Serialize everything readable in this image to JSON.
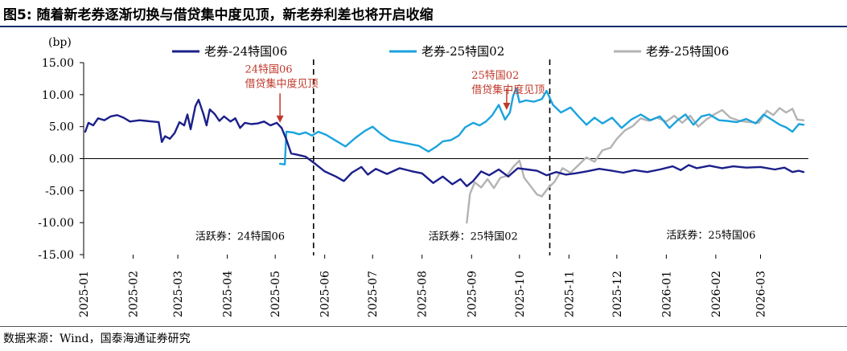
{
  "figure": {
    "title": "图5: 随着新老券逐渐切换与借贷集中度见顶，新老券利差也将开启收缩",
    "source": "数据来源：Wind，国泰海通证券研究"
  },
  "chart_data": {
    "type": "line",
    "unit_label": "(bp)",
    "x_range": [
      "2025-01-01",
      "2026-03-31"
    ],
    "ylim": [
      -15,
      15
    ],
    "yticks": [
      "15.00",
      "10.00",
      "5.00",
      "0.00",
      "-5.00",
      "-10.00",
      "-15.00"
    ],
    "xticks": [
      {
        "label": "2025-01",
        "date": "2025-01-01"
      },
      {
        "label": "2025-02",
        "date": "2025-02-01"
      },
      {
        "label": "2025-03",
        "date": "2025-03-01"
      },
      {
        "label": "2025-04",
        "date": "2025-04-01"
      },
      {
        "label": "2025-05",
        "date": "2025-05-01"
      },
      {
        "label": "2025-06",
        "date": "2025-06-01"
      },
      {
        "label": "2025-07",
        "date": "2025-07-01"
      },
      {
        "label": "2025-08",
        "date": "2025-08-01"
      },
      {
        "label": "2025-09",
        "date": "2025-09-01"
      },
      {
        "label": "2025-10",
        "date": "2025-10-01"
      },
      {
        "label": "2025-11",
        "date": "2025-11-01"
      },
      {
        "label": "2025-12",
        "date": "2025-12-01"
      },
      {
        "label": "2026-01",
        "date": "2026-01-01"
      },
      {
        "label": "2026-02",
        "date": "2026-02-01"
      },
      {
        "label": "2026-03",
        "date": "2026-03-01"
      }
    ],
    "grid": false,
    "legend_position": "top",
    "series": [
      {
        "name": "老券-24特国06",
        "color": "#1b1f8a",
        "points": [
          [
            "2025-01-02",
            4.2
          ],
          [
            "2025-01-04",
            5.6
          ],
          [
            "2025-01-07",
            5.2
          ],
          [
            "2025-01-10",
            6.3
          ],
          [
            "2025-01-14",
            6.0
          ],
          [
            "2025-01-18",
            6.6
          ],
          [
            "2025-01-22",
            6.8
          ],
          [
            "2025-01-26",
            6.4
          ],
          [
            "2025-01-30",
            5.8
          ],
          [
            "2025-02-05",
            6.0
          ],
          [
            "2025-02-09",
            5.9
          ],
          [
            "2025-02-13",
            5.8
          ],
          [
            "2025-02-17",
            5.7
          ],
          [
            "2025-02-19",
            2.6
          ],
          [
            "2025-02-21",
            3.5
          ],
          [
            "2025-02-24",
            3.1
          ],
          [
            "2025-02-27",
            4.0
          ],
          [
            "2025-03-02",
            5.7
          ],
          [
            "2025-03-05",
            5.2
          ],
          [
            "2025-03-07",
            6.9
          ],
          [
            "2025-03-09",
            4.6
          ],
          [
            "2025-03-12",
            8.2
          ],
          [
            "2025-03-14",
            9.2
          ],
          [
            "2025-03-17",
            7.0
          ],
          [
            "2025-03-19",
            5.2
          ],
          [
            "2025-03-21",
            7.7
          ],
          [
            "2025-03-24",
            7.0
          ],
          [
            "2025-03-27",
            5.9
          ],
          [
            "2025-03-30",
            6.6
          ],
          [
            "2025-04-03",
            5.8
          ],
          [
            "2025-04-06",
            6.3
          ],
          [
            "2025-04-09",
            4.8
          ],
          [
            "2025-04-12",
            5.6
          ],
          [
            "2025-04-16",
            5.4
          ],
          [
            "2025-04-20",
            5.5
          ],
          [
            "2025-04-24",
            5.8
          ],
          [
            "2025-04-28",
            5.2
          ],
          [
            "2025-05-02",
            5.6
          ],
          [
            "2025-05-05",
            4.8
          ],
          [
            "2025-05-08",
            3.0
          ],
          [
            "2025-05-11",
            0.8
          ],
          [
            "2025-05-15",
            0.6
          ],
          [
            "2025-05-20",
            0.3
          ],
          [
            "2025-05-26",
            -0.8
          ],
          [
            "2025-06-01",
            -2.0
          ],
          [
            "2025-06-08",
            -2.8
          ],
          [
            "2025-06-13",
            -3.5
          ],
          [
            "2025-06-18",
            -2.2
          ],
          [
            "2025-06-24",
            -1.3
          ],
          [
            "2025-06-28",
            -2.5
          ],
          [
            "2025-07-03",
            -1.6
          ],
          [
            "2025-07-10",
            -2.4
          ],
          [
            "2025-07-18",
            -1.5
          ],
          [
            "2025-07-26",
            -2.0
          ],
          [
            "2025-08-01",
            -2.3
          ],
          [
            "2025-08-08",
            -3.8
          ],
          [
            "2025-08-14",
            -2.8
          ],
          [
            "2025-08-20",
            -4.0
          ],
          [
            "2025-08-25",
            -3.2
          ],
          [
            "2025-08-29",
            -4.3
          ],
          [
            "2025-09-02",
            -3.5
          ],
          [
            "2025-09-07",
            -2.0
          ],
          [
            "2025-09-12",
            -2.6
          ],
          [
            "2025-09-18",
            -1.7
          ],
          [
            "2025-09-24",
            -2.8
          ],
          [
            "2025-09-30",
            -1.5
          ],
          [
            "2025-10-06",
            -1.7
          ],
          [
            "2025-10-12",
            -1.9
          ],
          [
            "2025-10-18",
            -2.6
          ],
          [
            "2025-10-24",
            -2.1
          ],
          [
            "2025-10-30",
            -2.5
          ],
          [
            "2025-11-05",
            -2.3
          ],
          [
            "2025-11-12",
            -2.0
          ],
          [
            "2025-11-20",
            -1.6
          ],
          [
            "2025-11-28",
            -1.9
          ],
          [
            "2025-12-05",
            -2.2
          ],
          [
            "2025-12-12",
            -1.8
          ],
          [
            "2025-12-20",
            -2.1
          ],
          [
            "2025-12-28",
            -1.7
          ],
          [
            "2026-01-05",
            -1.2
          ],
          [
            "2026-01-10",
            -1.8
          ],
          [
            "2026-01-15",
            -1.0
          ],
          [
            "2026-01-20",
            -1.5
          ],
          [
            "2026-01-28",
            -1.1
          ],
          [
            "2026-02-05",
            -1.5
          ],
          [
            "2026-02-12",
            -1.2
          ],
          [
            "2026-02-20",
            -1.4
          ],
          [
            "2026-03-01",
            -1.3
          ],
          [
            "2026-03-10",
            -1.7
          ],
          [
            "2026-03-16",
            -1.4
          ],
          [
            "2026-03-21",
            -2.1
          ],
          [
            "2026-03-25",
            -1.9
          ],
          [
            "2026-03-28",
            -2.1
          ]
        ]
      },
      {
        "name": "老券-25特国02",
        "color": "#1aa3dd",
        "points": [
          [
            "2025-05-04",
            -0.8
          ],
          [
            "2025-05-07",
            -0.9
          ],
          [
            "2025-05-08",
            4.2
          ],
          [
            "2025-05-12",
            4.1
          ],
          [
            "2025-05-16",
            3.8
          ],
          [
            "2025-05-20",
            4.1
          ],
          [
            "2025-05-24",
            3.6
          ],
          [
            "2025-05-28",
            4.2
          ],
          [
            "2025-06-02",
            3.7
          ],
          [
            "2025-06-08",
            2.8
          ],
          [
            "2025-06-14",
            1.9
          ],
          [
            "2025-06-20",
            3.2
          ],
          [
            "2025-06-26",
            4.3
          ],
          [
            "2025-07-01",
            5.0
          ],
          [
            "2025-07-06",
            3.9
          ],
          [
            "2025-07-12",
            2.9
          ],
          [
            "2025-07-18",
            2.6
          ],
          [
            "2025-07-24",
            2.3
          ],
          [
            "2025-07-30",
            2.0
          ],
          [
            "2025-08-05",
            1.1
          ],
          [
            "2025-08-10",
            1.9
          ],
          [
            "2025-08-14",
            2.7
          ],
          [
            "2025-08-19",
            2.9
          ],
          [
            "2025-08-24",
            3.6
          ],
          [
            "2025-08-28",
            4.9
          ],
          [
            "2025-09-02",
            5.6
          ],
          [
            "2025-09-06",
            5.2
          ],
          [
            "2025-09-10",
            5.8
          ],
          [
            "2025-09-14",
            6.8
          ],
          [
            "2025-09-18",
            8.4
          ],
          [
            "2025-09-22",
            6.1
          ],
          [
            "2025-09-25",
            7.2
          ],
          [
            "2025-09-27",
            9.8
          ],
          [
            "2025-09-29",
            11.0
          ],
          [
            "2025-10-01",
            8.8
          ],
          [
            "2025-10-05",
            9.1
          ],
          [
            "2025-10-10",
            8.9
          ],
          [
            "2025-10-15",
            9.3
          ],
          [
            "2025-10-18",
            10.6
          ],
          [
            "2025-10-22",
            8.4
          ],
          [
            "2025-10-27",
            7.2
          ],
          [
            "2025-11-02",
            8.0
          ],
          [
            "2025-11-07",
            6.6
          ],
          [
            "2025-11-12",
            5.3
          ],
          [
            "2025-11-17",
            6.4
          ],
          [
            "2025-11-22",
            5.5
          ],
          [
            "2025-11-28",
            6.4
          ],
          [
            "2025-12-04",
            4.8
          ],
          [
            "2025-12-10",
            6.1
          ],
          [
            "2025-12-16",
            6.9
          ],
          [
            "2025-12-22",
            6.0
          ],
          [
            "2025-12-28",
            6.6
          ],
          [
            "2026-01-03",
            4.8
          ],
          [
            "2026-01-08",
            6.0
          ],
          [
            "2026-01-13",
            6.9
          ],
          [
            "2026-01-18",
            5.3
          ],
          [
            "2026-01-23",
            6.6
          ],
          [
            "2026-01-28",
            6.9
          ],
          [
            "2026-02-03",
            6.0
          ],
          [
            "2026-02-08",
            5.9
          ],
          [
            "2026-02-14",
            5.7
          ],
          [
            "2026-02-20",
            6.2
          ],
          [
            "2026-02-26",
            5.5
          ],
          [
            "2026-03-03",
            6.9
          ],
          [
            "2026-03-08",
            6.1
          ],
          [
            "2026-03-13",
            5.3
          ],
          [
            "2026-03-17",
            4.9
          ],
          [
            "2026-03-21",
            4.2
          ],
          [
            "2026-03-25",
            5.4
          ],
          [
            "2026-03-28",
            5.3
          ]
        ]
      },
      {
        "name": "老券-25特国06",
        "color": "#b3b3b3",
        "points": [
          [
            "2025-08-29",
            -10.0
          ],
          [
            "2025-08-31",
            -5.5
          ],
          [
            "2025-09-03",
            -3.7
          ],
          [
            "2025-09-07",
            -4.5
          ],
          [
            "2025-09-11",
            -3.2
          ],
          [
            "2025-09-15",
            -4.6
          ],
          [
            "2025-09-19",
            -3.0
          ],
          [
            "2025-09-23",
            -2.7
          ],
          [
            "2025-09-27",
            -1.3
          ],
          [
            "2025-10-01",
            -0.3
          ],
          [
            "2025-10-04",
            -3.0
          ],
          [
            "2025-10-08",
            -4.3
          ],
          [
            "2025-10-12",
            -5.6
          ],
          [
            "2025-10-15",
            -5.9
          ],
          [
            "2025-10-19",
            -4.6
          ],
          [
            "2025-10-23",
            -3.6
          ],
          [
            "2025-10-28",
            -1.5
          ],
          [
            "2025-11-02",
            -2.2
          ],
          [
            "2025-11-07",
            -1.0
          ],
          [
            "2025-11-12",
            0.2
          ],
          [
            "2025-11-17",
            -0.5
          ],
          [
            "2025-11-22",
            1.3
          ],
          [
            "2025-11-27",
            1.7
          ],
          [
            "2025-12-01",
            3.1
          ],
          [
            "2025-12-06",
            4.4
          ],
          [
            "2025-12-11",
            5.1
          ],
          [
            "2025-12-16",
            6.3
          ],
          [
            "2025-12-21",
            5.9
          ],
          [
            "2025-12-26",
            6.4
          ],
          [
            "2026-01-01",
            5.8
          ],
          [
            "2026-01-06",
            6.7
          ],
          [
            "2026-01-11",
            5.6
          ],
          [
            "2026-01-16",
            6.7
          ],
          [
            "2026-01-21",
            5.0
          ],
          [
            "2026-01-26",
            6.1
          ],
          [
            "2026-01-31",
            6.9
          ],
          [
            "2026-02-05",
            7.6
          ],
          [
            "2026-02-10",
            6.4
          ],
          [
            "2026-02-16",
            5.9
          ],
          [
            "2026-02-22",
            5.7
          ],
          [
            "2026-02-28",
            5.6
          ],
          [
            "2026-03-05",
            7.5
          ],
          [
            "2026-03-09",
            6.8
          ],
          [
            "2026-03-13",
            7.9
          ],
          [
            "2026-03-17",
            7.2
          ],
          [
            "2026-03-21",
            7.8
          ],
          [
            "2026-03-24",
            6.1
          ],
          [
            "2026-03-28",
            6.0
          ]
        ]
      }
    ],
    "regime_lines": [
      "2025-05-25",
      "2025-10-20"
    ],
    "regime_labels": [
      {
        "text": "活跃券：24特国06",
        "date": "2025-03-12",
        "y": -12.7
      },
      {
        "text": "活跃券：25特国02",
        "date": "2025-08-05",
        "y": -12.7
      },
      {
        "text": "活跃券：25特国06",
        "date": "2026-01-01",
        "y": -12.5
      }
    ],
    "annotations": [
      {
        "line1": "24特国06",
        "line2": "借贷集中度见顶",
        "date": "2025-04-12",
        "label_y": 13.4,
        "arrow_from_y": 10.2,
        "arrow_to_y": 5.6,
        "arrow_date": "2025-05-04",
        "color": "#c0392b"
      },
      {
        "line1": "25特国02",
        "line2": "借贷集中度见顶",
        "date": "2025-09-01",
        "label_y": 12.5,
        "arrow_from_y": 11.0,
        "arrow_to_y": 7.6,
        "arrow_date": "2025-09-23",
        "color": "#c0392b"
      }
    ]
  }
}
